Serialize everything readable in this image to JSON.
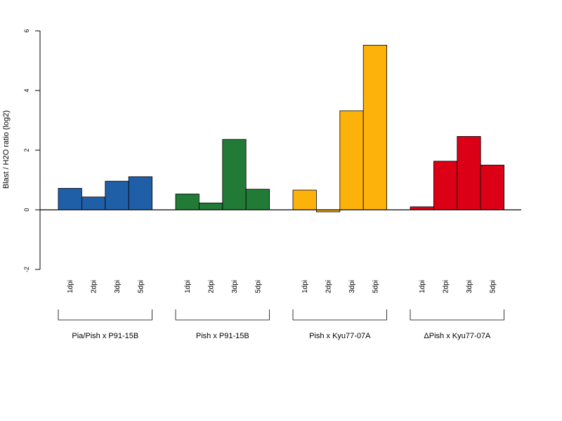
{
  "chart_data": {
    "type": "bar",
    "title": "",
    "ylabel": "Blast / H2O ratio (log2)",
    "xlabel": "",
    "ylim": [
      -2,
      6
    ],
    "yticks": [
      -2,
      0,
      2,
      4,
      6
    ],
    "grid": false,
    "groups": [
      {
        "name": "Pia/Pish x P91-15B",
        "color": "#1f5fa8",
        "categories": [
          "1dpi",
          "2dpi",
          "3dpi",
          "5dpi"
        ],
        "values": [
          0.72,
          0.43,
          0.96,
          1.11
        ]
      },
      {
        "name": "Pish x P91-15B",
        "color": "#217a36",
        "categories": [
          "1dpi",
          "2dpi",
          "3dpi",
          "5dpi"
        ],
        "values": [
          0.53,
          0.23,
          2.36,
          0.69
        ]
      },
      {
        "name": "Pish x Kyu77-07A",
        "color": "#fdb10b",
        "categories": [
          "1dpi",
          "2dpi",
          "3dpi",
          "5dpi"
        ],
        "values": [
          0.66,
          -0.07,
          3.32,
          5.52
        ]
      },
      {
        "name": "ΔPish x Kyu77-07A",
        "color": "#dc0017",
        "categories": [
          "1dpi",
          "2dpi",
          "3dpi",
          "5dpi"
        ],
        "values": [
          0.1,
          1.63,
          2.46,
          1.5
        ]
      }
    ]
  }
}
